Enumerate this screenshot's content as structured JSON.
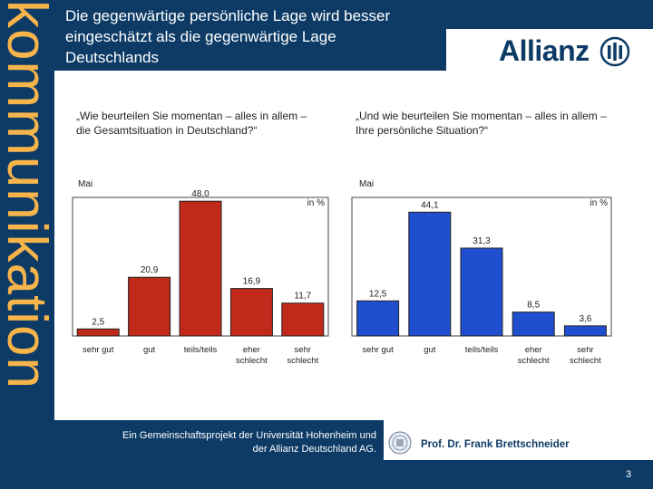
{
  "sidebar": {
    "text": "kommunikation"
  },
  "header": {
    "title": "Die gegenwärtige persönliche Lage wird besser eingeschätzt als die gegenwärtige Lage Deutschlands",
    "logo_text": "Allianz"
  },
  "colors": {
    "navy": "#0d3b66",
    "orange": "#f6b44a",
    "red": "#c1291a",
    "blue": "#1f4fcf"
  },
  "footer": {
    "project_text": "Ein Gemeinschaftsprojekt der Universität Hohenheim und der Allianz Deutschland AG.",
    "author": "Prof. Dr. Frank Brettschneider",
    "page_number": "3"
  },
  "chart_data": [
    {
      "type": "bar",
      "question": "„Wie beurteilen Sie momentan – alles in allem – die Gesamtsituation in Deutschland?“",
      "period_label": "Mai",
      "unit_label": "in %",
      "categories": [
        "sehr gut",
        "gut",
        "teils/teils",
        "eher schlecht",
        "sehr schlecht"
      ],
      "category_lines": [
        [
          "sehr gut"
        ],
        [
          "gut"
        ],
        [
          "teils/teils"
        ],
        [
          "eher",
          "schlecht"
        ],
        [
          "sehr",
          "schlecht"
        ]
      ],
      "values": [
        2.5,
        20.9,
        48.0,
        16.9,
        11.7
      ],
      "value_labels": [
        "2,5",
        "20,9",
        "48,0",
        "16,9",
        "11,7"
      ],
      "color": "#c1291a",
      "ylim": [
        0,
        50
      ]
    },
    {
      "type": "bar",
      "question": "„Und wie beurteilen Sie momentan – alles in allem – Ihre persönliche Situation?“",
      "period_label": "Mai",
      "unit_label": "in %",
      "categories": [
        "sehr gut",
        "gut",
        "teils/teils",
        "eher schlecht",
        "sehr schlecht"
      ],
      "category_lines": [
        [
          "sehr gut"
        ],
        [
          "gut"
        ],
        [
          "teils/teils"
        ],
        [
          "eher",
          "schlecht"
        ],
        [
          "sehr",
          "schlecht"
        ]
      ],
      "values": [
        12.5,
        44.1,
        31.3,
        8.5,
        3.6
      ],
      "value_labels": [
        "12,5",
        "44,1",
        "31,3",
        "8,5",
        "3,6"
      ],
      "color": "#1f4fcf",
      "ylim": [
        0,
        50
      ]
    }
  ]
}
